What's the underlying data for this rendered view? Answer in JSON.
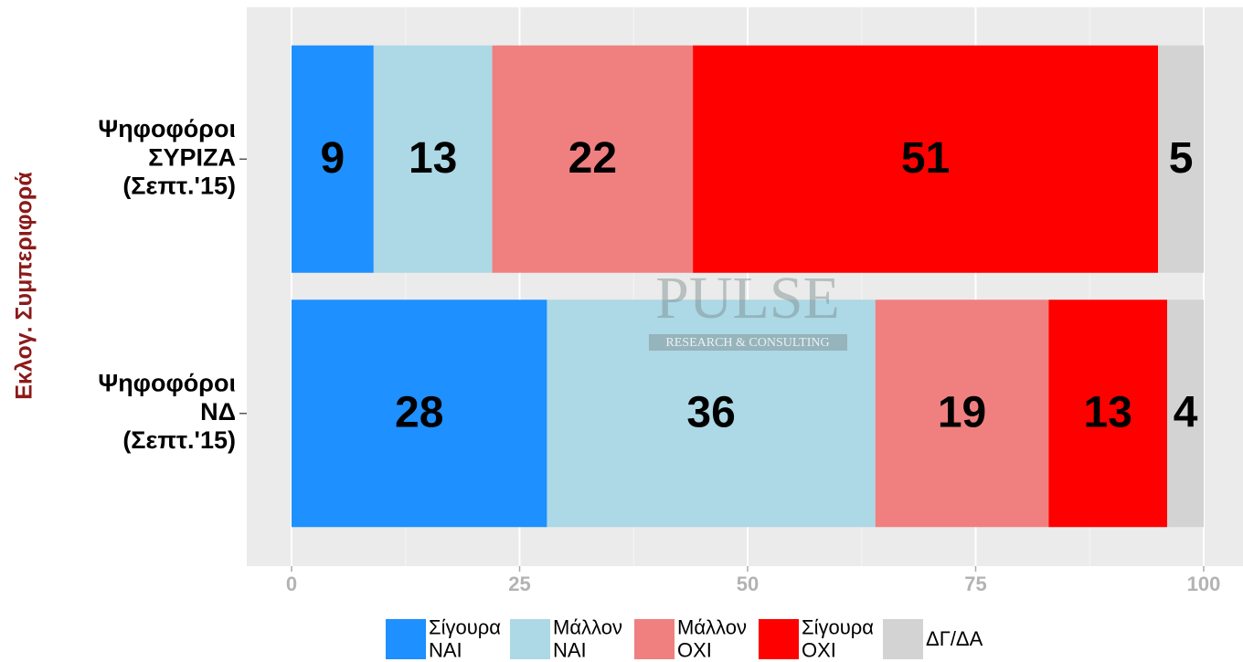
{
  "chart_data": {
    "type": "stacked-bar-horizontal",
    "ylabel": "Εκλογ. Συμπεριφορά",
    "categories": [
      "Ψηφοφόροι\nΣΥΡΙΖΑ\n(Σεπτ.'15)",
      "Ψηφοφόροι\nΝΔ\n(Σεπτ.'15)"
    ],
    "series": [
      {
        "name": "Σίγουρα\nΝΑΙ",
        "color": "#1e90ff",
        "values": [
          9,
          28
        ]
      },
      {
        "name": "Μάλλον\nΝΑΙ",
        "color": "#add8e6",
        "values": [
          13,
          36
        ]
      },
      {
        "name": "Μάλλον\nΟΧΙ",
        "color": "#f08080",
        "values": [
          22,
          19
        ]
      },
      {
        "name": "Σίγουρα\nΟΧΙ",
        "color": "#ff0000",
        "values": [
          51,
          13
        ]
      },
      {
        "name": "ΔΓ/ΔΑ",
        "color": "#d3d3d3",
        "values": [
          5,
          4
        ]
      }
    ],
    "xlim": [
      0,
      100
    ],
    "xticks": [
      0,
      25,
      50,
      75,
      100
    ],
    "grid": true,
    "legend": "bottom",
    "watermark": {
      "title": "PULSE",
      "subtitle": "RESEARCH & CONSULTING"
    }
  }
}
